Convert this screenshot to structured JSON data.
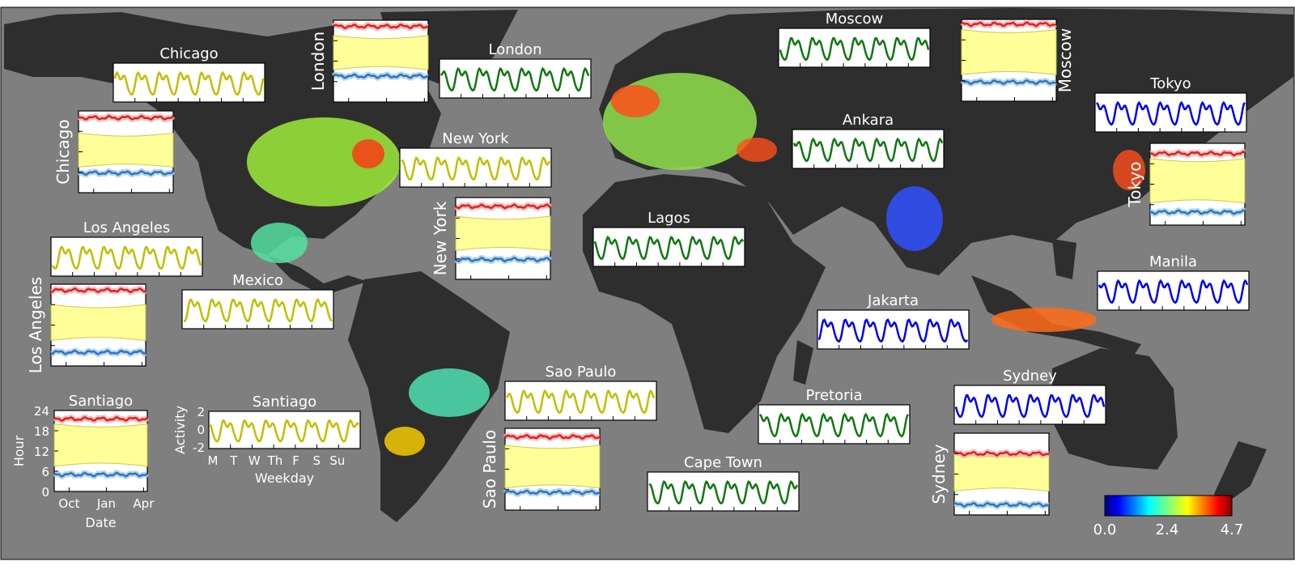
{
  "colorbar": {
    "min_label": "0.0",
    "mid_label": "2.4",
    "max_label": "4.7",
    "min": 0.0,
    "max": 4.7
  },
  "colors": {
    "ocean": "#7f7f7f",
    "land": "#2e2e2e",
    "north_america": "#bfbf00",
    "latin_america": "#bfbf00",
    "europe_africa": "#117711",
    "asia_pacific": "#0000ee",
    "sleep_band": "#ffff99",
    "sleep_band_edge": "#c9c94a",
    "wake_line": "#dd2222",
    "bed_line": "#2a76c0"
  },
  "weekday_panels": [
    {
      "city": "Chicago",
      "region": "north_america",
      "phase": 0.0
    },
    {
      "city": "London",
      "region": "europe_africa",
      "phase": 0.3
    },
    {
      "city": "Moscow",
      "region": "europe_africa",
      "phase": 0.6
    },
    {
      "city": "Tokyo",
      "region": "asia_pacific",
      "phase": 0.1
    },
    {
      "city": "New York",
      "region": "north_america",
      "phase": 0.4
    },
    {
      "city": "Ankara",
      "region": "europe_africa",
      "phase": 0.2
    },
    {
      "city": "Los Angeles",
      "region": "north_america",
      "phase": 0.7
    },
    {
      "city": "Lagos",
      "region": "europe_africa",
      "phase": 0.5
    },
    {
      "city": "Mexico",
      "region": "latin_america",
      "phase": 0.8
    },
    {
      "city": "Manila",
      "region": "asia_pacific",
      "phase": 0.2
    },
    {
      "city": "Jakarta",
      "region": "asia_pacific",
      "phase": 0.9
    },
    {
      "city": "Sao Paulo",
      "region": "latin_america",
      "phase": 0.3
    },
    {
      "city": "Sydney",
      "region": "asia_pacific",
      "phase": 0.6
    },
    {
      "city": "Pretoria",
      "region": "europe_africa",
      "phase": 0.1
    },
    {
      "city": "Cape Town",
      "region": "europe_africa",
      "phase": 0.4
    },
    {
      "city": "Santiago",
      "region": "latin_america",
      "phase": 0.5,
      "ylabel": "Activity",
      "xlabel": "Weekday",
      "yticks": [
        "2",
        "0",
        "-2"
      ],
      "xticks": [
        "M",
        "T",
        "W",
        "Th",
        "F",
        "S",
        "Su"
      ]
    }
  ],
  "seasonal_panels": [
    {
      "city": "London",
      "wake": 22.2,
      "bed": 7.6,
      "sleep_start": 19.5,
      "sleep_end": 9.5
    },
    {
      "city": "Moscow",
      "wake": 22.6,
      "bed": 5.6,
      "sleep_start": 21.0,
      "sleep_end": 7.8
    },
    {
      "city": "Chicago",
      "wake": 22.0,
      "bed": 5.8,
      "sleep_start": 17.5,
      "sleep_end": 7.5
    },
    {
      "city": "Tokyo",
      "wake": 21.0,
      "bed": 3.8,
      "sleep_start": 19.5,
      "sleep_end": 6.5
    },
    {
      "city": "New York",
      "wake": 21.4,
      "bed": 5.8,
      "sleep_start": 18.5,
      "sleep_end": 8.5
    },
    {
      "city": "Los Angeles",
      "wake": 22.2,
      "bed": 4.0,
      "sleep_start": 18.0,
      "sleep_end": 7.5
    },
    {
      "city": "Sao Paulo",
      "wake": 21.5,
      "bed": 5.2,
      "sleep_start": 19.0,
      "sleep_end": 6.5
    },
    {
      "city": "Sydney",
      "wake": 18.0,
      "bed": 3.0,
      "sleep_start": 18.0,
      "sleep_end": 7.0
    },
    {
      "city": "Santiago",
      "wake": 21.5,
      "bed": 5.0,
      "sleep_start": 20.0,
      "sleep_end": 7.5,
      "ylabel": "Hour",
      "xlabel": "Date",
      "yticks": [
        "24",
        "18",
        "12",
        "6",
        "0"
      ],
      "xticks": [
        "Oct",
        "Jan",
        "Apr"
      ]
    }
  ]
}
